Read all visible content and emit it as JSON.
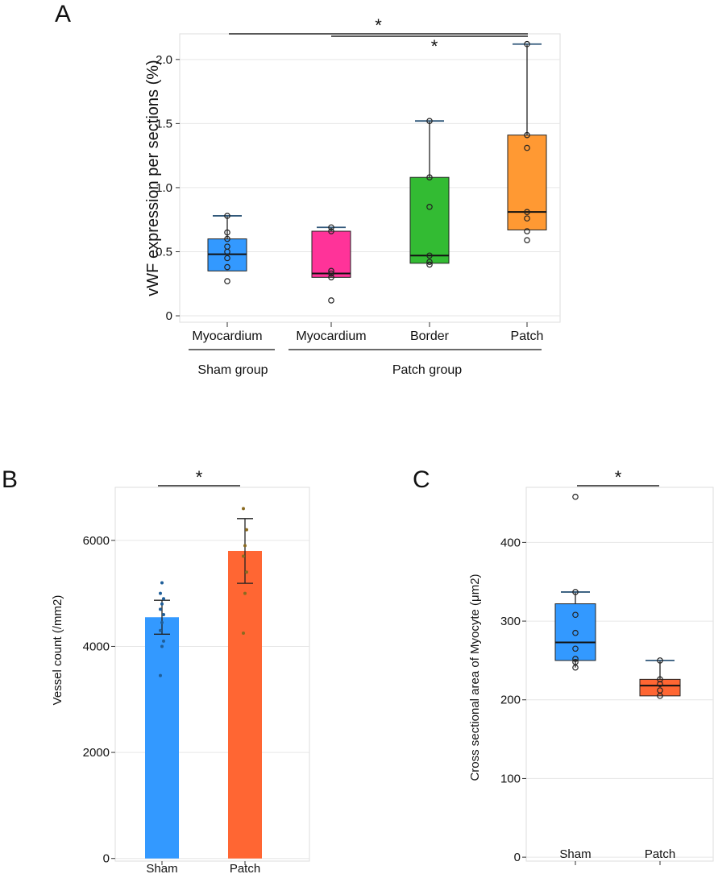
{
  "panels": {
    "A": "A",
    "B": "B",
    "C": "C"
  },
  "chart_data": [
    {
      "type": "box",
      "panel": "A",
      "title": "",
      "ylabel": "vWF expression per sections (%)",
      "ylim": [
        -0.05,
        2.2
      ],
      "yticks": [
        0,
        0.5,
        1.0,
        1.5,
        2.0
      ],
      "ytick_labels": [
        "0",
        "0.5",
        "1.0",
        "1.5",
        "2.0"
      ],
      "categories": [
        "Myocardium",
        "Myocardium",
        "Border",
        "Patch"
      ],
      "groups": [
        {
          "label": "Sham group",
          "categories": [
            0
          ]
        },
        {
          "label": "Patch group",
          "categories": [
            1,
            2,
            3
          ]
        }
      ],
      "boxes": [
        {
          "name": "Myocardium (Sham)",
          "color": "#3399ff",
          "q1": 0.35,
          "median": 0.48,
          "q3": 0.6,
          "whisker_low": 0.35,
          "whisker_high": 0.78,
          "points": [
            0.27,
            0.38,
            0.45,
            0.5,
            0.54,
            0.6,
            0.65,
            0.78
          ]
        },
        {
          "name": "Myocardium (Patch)",
          "color": "#ff3399",
          "q1": 0.3,
          "median": 0.33,
          "q3": 0.66,
          "whisker_low": 0.3,
          "whisker_high": 0.69,
          "points": [
            0.12,
            0.3,
            0.33,
            0.35,
            0.66,
            0.69
          ]
        },
        {
          "name": "Border",
          "color": "#33bb33",
          "q1": 0.41,
          "median": 0.47,
          "q3": 1.08,
          "whisker_low": 0.41,
          "whisker_high": 1.52,
          "points": [
            0.4,
            0.42,
            0.47,
            0.85,
            1.08,
            1.52
          ]
        },
        {
          "name": "Patch",
          "color": "#ff9933",
          "q1": 0.67,
          "median": 0.81,
          "q3": 1.41,
          "whisker_low": 0.67,
          "whisker_high": 2.12,
          "points": [
            0.59,
            0.66,
            0.76,
            0.81,
            1.31,
            1.41,
            2.12
          ]
        }
      ],
      "significance": [
        {
          "from": 0,
          "to": 3,
          "label": "*"
        },
        {
          "from": 1,
          "to": 3,
          "label": "*"
        }
      ]
    },
    {
      "type": "bar",
      "panel": "B",
      "ylabel": "Vessel count (/mm2)",
      "ylim": [
        -50,
        7000
      ],
      "yticks": [
        0,
        2000,
        4000,
        6000
      ],
      "ytick_labels": [
        "0",
        "2000",
        "4000",
        "6000"
      ],
      "categories": [
        "Sham",
        "Patch"
      ],
      "values": [
        4550,
        5800
      ],
      "errors": [
        320,
        610
      ],
      "colors": [
        "#3399ff",
        "#ff6633"
      ],
      "points": [
        [
          3450,
          4000,
          4100,
          4300,
          4450,
          4600,
          4700,
          4800,
          4900,
          5000,
          5200
        ],
        [
          4250,
          5000,
          5400,
          5700,
          5900,
          6200,
          6600
        ]
      ],
      "significance": [
        {
          "from": 0,
          "to": 1,
          "label": "*"
        }
      ]
    },
    {
      "type": "box",
      "panel": "C",
      "ylabel": "Cross sectional area of Myocyte (μm2)",
      "ylim": [
        -5,
        470
      ],
      "yticks": [
        0,
        100,
        200,
        300,
        400
      ],
      "ytick_labels": [
        "0",
        "100",
        "200",
        "300",
        "400"
      ],
      "categories": [
        "Sham",
        "Patch"
      ],
      "boxes": [
        {
          "name": "Sham",
          "color": "#3399ff",
          "q1": 250,
          "median": 273,
          "q3": 322,
          "whisker_low": 241,
          "whisker_high": 337,
          "points": [
            241,
            248,
            252,
            265,
            285,
            308,
            337,
            458
          ]
        },
        {
          "name": "Patch",
          "color": "#ff6633",
          "q1": 205,
          "median": 218,
          "q3": 226,
          "whisker_low": 205,
          "whisker_high": 250,
          "points": [
            205,
            212,
            220,
            226,
            250
          ]
        }
      ],
      "significance": [
        {
          "from": 0,
          "to": 1,
          "label": "*"
        }
      ]
    }
  ]
}
